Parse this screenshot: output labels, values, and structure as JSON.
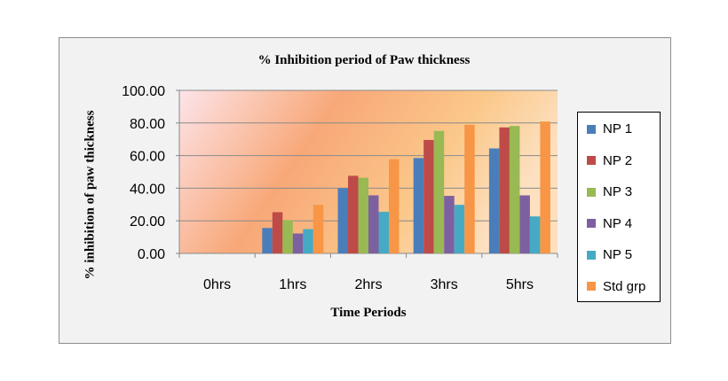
{
  "chart_data": {
    "type": "bar",
    "title": "% Inhibition period of Paw thickness",
    "xlabel": "Time Periods",
    "ylabel": "% inhibition of paw thickness",
    "categories": [
      "0hrs",
      "1hrs",
      "2hrs",
      "3hrs",
      "5hrs"
    ],
    "ylim": [
      0,
      100
    ],
    "yticks": [
      "0.00",
      "20.00",
      "40.00",
      "60.00",
      "80.00",
      "100.00"
    ],
    "grid": true,
    "legend_position": "right",
    "series": [
      {
        "name": "NP 1",
        "color": "#4a7ebb",
        "values": [
          0,
          15.6,
          40.0,
          58.5,
          64.4
        ]
      },
      {
        "name": "NP 2",
        "color": "#be4b48",
        "values": [
          0,
          25.3,
          47.6,
          69.6,
          77.3
        ]
      },
      {
        "name": "NP 3",
        "color": "#98b954",
        "values": [
          0,
          20.4,
          46.4,
          75.1,
          78.2
        ]
      },
      {
        "name": "NP 4",
        "color": "#7d60a0",
        "values": [
          0,
          12.2,
          35.6,
          35.3,
          35.6
        ]
      },
      {
        "name": "NP 5",
        "color": "#46aac5",
        "values": [
          0,
          14.9,
          25.5,
          29.8,
          22.7
        ]
      },
      {
        "name": "Std grp",
        "color": "#f79646",
        "values": [
          0,
          29.8,
          57.8,
          78.9,
          80.9
        ]
      }
    ]
  }
}
